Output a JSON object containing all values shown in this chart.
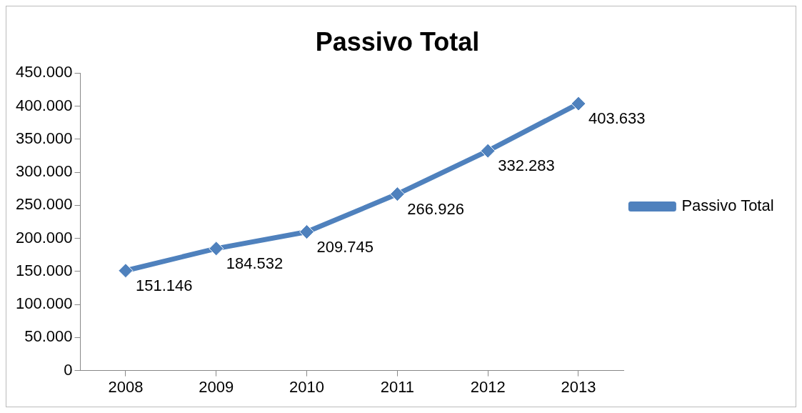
{
  "chart_data": {
    "type": "line",
    "title": "Passivo Total",
    "categories": [
      "2008",
      "2009",
      "2010",
      "2011",
      "2012",
      "2013"
    ],
    "series": [
      {
        "name": "Passivo Total",
        "color": "#4f81bd",
        "values": [
          151146,
          184532,
          209745,
          266926,
          332283,
          403633
        ],
        "value_labels": [
          "151.146",
          "184.532",
          "209.745",
          "266.926",
          "332.283",
          "403.633"
        ]
      }
    ],
    "ylim": [
      0,
      450000
    ],
    "yticks": [
      0,
      {
        "value": 50000,
        "label": "50.000"
      },
      {
        "value": 100000,
        "label": "100.000"
      },
      {
        "value": 150000,
        "label": "150.000"
      },
      {
        "value": 200000,
        "label": "200.000"
      },
      {
        "value": 250000,
        "label": "250.000"
      },
      {
        "value": 300000,
        "label": "300.000"
      },
      {
        "value": 350000,
        "label": "350.000"
      },
      {
        "value": 400000,
        "label": "400.000"
      },
      {
        "value": 450000,
        "label": "450.000"
      }
    ],
    "grid": false,
    "legend": "right",
    "marker": "diamond",
    "line_style": "solid"
  }
}
